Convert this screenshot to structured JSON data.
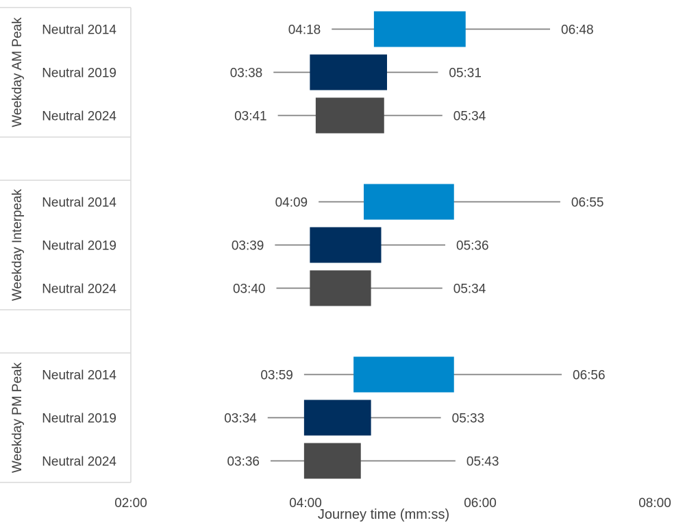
{
  "chart_data": {
    "type": "bar",
    "subtype": "range-box",
    "orientation": "horizontal",
    "xlabel": "Journey time (mm:ss)",
    "xticks": [
      "02:00",
      "04:00",
      "06:00",
      "08:00"
    ],
    "xlim": [
      "02:00",
      "08:00"
    ],
    "grid": false,
    "legend": "none",
    "colors": {
      "Neutral 2014": "#0088CC",
      "Neutral 2019": "#002F5F",
      "Neutral 2024": "#4A4A4A",
      "whisker": "#7F7F7F"
    },
    "groups": [
      {
        "name": "Weekday AM Peak",
        "rows": [
          {
            "label": "Neutral 2014",
            "min": "04:18",
            "box_start": "04:47",
            "box_end": "05:50",
            "max": "06:48",
            "min_label": "04:18",
            "max_label": "06:48"
          },
          {
            "label": "Neutral 2019",
            "min": "03:38",
            "box_start": "04:03",
            "box_end": "04:56",
            "max": "05:31",
            "min_label": "03:38",
            "max_label": "05:31"
          },
          {
            "label": "Neutral 2024",
            "min": "03:41",
            "box_start": "04:07",
            "box_end": "04:54",
            "max": "05:34",
            "min_label": "03:41",
            "max_label": "05:34"
          }
        ]
      },
      {
        "name": "Weekday Interpeak",
        "rows": [
          {
            "label": "Neutral 2014",
            "min": "04:09",
            "box_start": "04:40",
            "box_end": "05:42",
            "max": "06:55",
            "min_label": "04:09",
            "max_label": "06:55"
          },
          {
            "label": "Neutral 2019",
            "min": "03:39",
            "box_start": "04:03",
            "box_end": "04:52",
            "max": "05:36",
            "min_label": "03:39",
            "max_label": "05:36"
          },
          {
            "label": "Neutral 2024",
            "min": "03:40",
            "box_start": "04:03",
            "box_end": "04:45",
            "max": "05:34",
            "min_label": "03:40",
            "max_label": "05:34"
          }
        ]
      },
      {
        "name": "Weekday PM Peak",
        "rows": [
          {
            "label": "Neutral 2014",
            "min": "03:59",
            "box_start": "04:33",
            "box_end": "05:42",
            "max": "06:56",
            "min_label": "03:59",
            "max_label": "06:56"
          },
          {
            "label": "Neutral 2019",
            "min": "03:34",
            "box_start": "03:59",
            "box_end": "04:45",
            "max": "05:33",
            "min_label": "03:34",
            "max_label": "05:33"
          },
          {
            "label": "Neutral 2024",
            "min": "03:36",
            "box_start": "03:59",
            "box_end": "04:38",
            "max": "05:43",
            "min_label": "03:36",
            "max_label": "05:43"
          }
        ]
      }
    ]
  }
}
